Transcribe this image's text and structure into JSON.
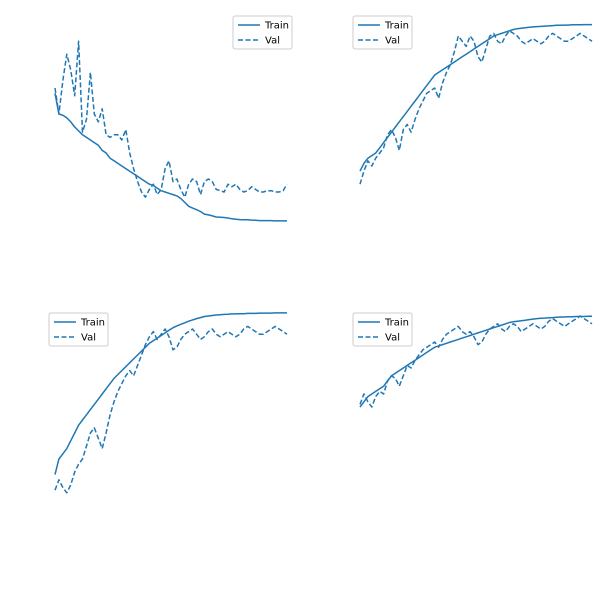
{
  "colors": {
    "line": "#1f77b4",
    "background": "#ffffff",
    "legend_border": "#cccccc"
  },
  "chart_data": [
    {
      "type": "line",
      "grid": false,
      "axes_visible": false,
      "legend_position": "upper-right",
      "x": [
        1,
        2,
        3,
        4,
        5,
        6,
        7,
        8,
        9,
        10,
        11,
        12,
        13,
        14,
        15,
        16,
        17,
        18,
        19,
        20,
        21,
        22,
        23,
        24,
        25,
        26,
        27,
        28,
        29,
        30,
        31,
        32,
        33,
        34,
        35,
        36,
        37,
        38,
        39,
        40,
        41,
        42,
        43,
        44,
        45,
        46,
        47,
        48,
        49,
        50,
        51,
        52,
        53,
        54,
        55,
        56,
        57,
        58,
        59,
        60
      ],
      "ylim": [
        0,
        1
      ],
      "series": [
        {
          "name": "Train",
          "style": "solid",
          "values": [
            0.68,
            0.6,
            0.595,
            0.585,
            0.57,
            0.55,
            0.535,
            0.52,
            0.51,
            0.5,
            0.49,
            0.48,
            0.46,
            0.45,
            0.43,
            0.42,
            0.41,
            0.4,
            0.39,
            0.38,
            0.37,
            0.36,
            0.35,
            0.34,
            0.33,
            0.325,
            0.315,
            0.305,
            0.3,
            0.295,
            0.29,
            0.285,
            0.275,
            0.26,
            0.245,
            0.238,
            0.232,
            0.225,
            0.215,
            0.212,
            0.208,
            0.204,
            0.203,
            0.202,
            0.2,
            0.197,
            0.195,
            0.194,
            0.193,
            0.193,
            0.192,
            0.191,
            0.19,
            0.19,
            0.19,
            0.19,
            0.189,
            0.189,
            0.189,
            0.189
          ]
        },
        {
          "name": "Val",
          "style": "dashed",
          "values": [
            0.7,
            0.6,
            0.73,
            0.83,
            0.77,
            0.67,
            0.88,
            0.53,
            0.58,
            0.76,
            0.6,
            0.57,
            0.62,
            0.52,
            0.51,
            0.52,
            0.52,
            0.5,
            0.54,
            0.45,
            0.39,
            0.34,
            0.3,
            0.28,
            0.31,
            0.33,
            0.29,
            0.31,
            0.39,
            0.42,
            0.34,
            0.35,
            0.31,
            0.28,
            0.33,
            0.35,
            0.34,
            0.29,
            0.34,
            0.35,
            0.34,
            0.31,
            0.305,
            0.3,
            0.33,
            0.32,
            0.33,
            0.31,
            0.3,
            0.305,
            0.32,
            0.31,
            0.3,
            0.3,
            0.305,
            0.305,
            0.3,
            0.3,
            0.305,
            0.33
          ]
        }
      ]
    },
    {
      "type": "line",
      "grid": false,
      "axes_visible": false,
      "legend_position": "upper-left",
      "x": [
        1,
        2,
        3,
        4,
        5,
        6,
        7,
        8,
        9,
        10,
        11,
        12,
        13,
        14,
        15,
        16,
        17,
        18,
        19,
        20,
        21,
        22,
        23,
        24,
        25,
        26,
        27,
        28,
        29,
        30,
        31,
        32,
        33,
        34,
        35,
        36,
        37,
        38,
        39,
        40,
        41,
        42,
        43,
        44,
        45,
        46,
        47,
        48,
        49,
        50,
        51,
        52,
        53,
        54,
        55,
        56,
        57,
        58,
        59,
        60
      ],
      "ylim": [
        0,
        1
      ],
      "series": [
        {
          "name": "Train",
          "style": "solid",
          "values": [
            0.38,
            0.41,
            0.43,
            0.44,
            0.45,
            0.47,
            0.49,
            0.51,
            0.53,
            0.55,
            0.57,
            0.59,
            0.61,
            0.63,
            0.65,
            0.67,
            0.69,
            0.71,
            0.73,
            0.75,
            0.76,
            0.77,
            0.78,
            0.79,
            0.8,
            0.81,
            0.82,
            0.83,
            0.84,
            0.85,
            0.86,
            0.87,
            0.88,
            0.89,
            0.9,
            0.905,
            0.91,
            0.915,
            0.92,
            0.925,
            0.928,
            0.93,
            0.932,
            0.934,
            0.935,
            0.936,
            0.937,
            0.938,
            0.939,
            0.94,
            0.941,
            0.941,
            0.942,
            0.942,
            0.943,
            0.943,
            0.943,
            0.944,
            0.944,
            0.944
          ]
        },
        {
          "name": "Val",
          "style": "dashed",
          "values": [
            0.33,
            0.38,
            0.42,
            0.4,
            0.43,
            0.45,
            0.47,
            0.52,
            0.54,
            0.51,
            0.46,
            0.54,
            0.56,
            0.53,
            0.58,
            0.62,
            0.65,
            0.68,
            0.69,
            0.7,
            0.66,
            0.72,
            0.76,
            0.79,
            0.84,
            0.9,
            0.88,
            0.86,
            0.9,
            0.88,
            0.82,
            0.8,
            0.85,
            0.9,
            0.91,
            0.88,
            0.87,
            0.9,
            0.92,
            0.91,
            0.9,
            0.88,
            0.87,
            0.88,
            0.89,
            0.88,
            0.87,
            0.88,
            0.9,
            0.91,
            0.9,
            0.89,
            0.88,
            0.88,
            0.89,
            0.9,
            0.91,
            0.9,
            0.89,
            0.88
          ]
        }
      ]
    },
    {
      "type": "line",
      "grid": false,
      "axes_visible": false,
      "legend_position": "upper-left",
      "x": [
        1,
        2,
        3,
        4,
        5,
        6,
        7,
        8,
        9,
        10,
        11,
        12,
        13,
        14,
        15,
        16,
        17,
        18,
        19,
        20,
        21,
        22,
        23,
        24,
        25,
        26,
        27,
        28,
        29,
        30,
        31,
        32,
        33,
        34,
        35,
        36,
        37,
        38,
        39,
        40,
        41,
        42,
        43,
        44,
        45,
        46,
        47,
        48,
        49,
        50,
        51,
        52,
        53,
        54,
        55,
        56,
        57,
        58,
        59,
        60
      ],
      "ylim": [
        0,
        1
      ],
      "series": [
        {
          "name": "Train",
          "style": "solid",
          "values": [
            0.34,
            0.4,
            0.42,
            0.44,
            0.47,
            0.5,
            0.53,
            0.55,
            0.57,
            0.59,
            0.61,
            0.63,
            0.65,
            0.67,
            0.69,
            0.71,
            0.725,
            0.74,
            0.755,
            0.77,
            0.785,
            0.8,
            0.815,
            0.83,
            0.845,
            0.855,
            0.865,
            0.875,
            0.885,
            0.895,
            0.905,
            0.912,
            0.918,
            0.924,
            0.93,
            0.935,
            0.94,
            0.944,
            0.948,
            0.95,
            0.952,
            0.954,
            0.955,
            0.956,
            0.957,
            0.958,
            0.958,
            0.959,
            0.959,
            0.96,
            0.96,
            0.96,
            0.961,
            0.961,
            0.961,
            0.961,
            0.962,
            0.962,
            0.962,
            0.962
          ]
        },
        {
          "name": "Val",
          "style": "dashed",
          "values": [
            0.28,
            0.32,
            0.29,
            0.27,
            0.3,
            0.35,
            0.38,
            0.4,
            0.45,
            0.5,
            0.52,
            0.48,
            0.44,
            0.5,
            0.57,
            0.62,
            0.66,
            0.69,
            0.72,
            0.74,
            0.72,
            0.76,
            0.8,
            0.84,
            0.87,
            0.89,
            0.86,
            0.88,
            0.9,
            0.87,
            0.82,
            0.83,
            0.86,
            0.88,
            0.89,
            0.9,
            0.88,
            0.86,
            0.87,
            0.89,
            0.9,
            0.88,
            0.87,
            0.88,
            0.89,
            0.88,
            0.87,
            0.88,
            0.9,
            0.91,
            0.9,
            0.89,
            0.88,
            0.88,
            0.89,
            0.9,
            0.91,
            0.9,
            0.89,
            0.88
          ]
        }
      ]
    },
    {
      "type": "line",
      "grid": false,
      "axes_visible": false,
      "legend_position": "upper-left",
      "x": [
        1,
        2,
        3,
        4,
        5,
        6,
        7,
        8,
        9,
        10,
        11,
        12,
        13,
        14,
        15,
        16,
        17,
        18,
        19,
        20,
        21,
        22,
        23,
        24,
        25,
        26,
        27,
        28,
        29,
        30,
        31,
        32,
        33,
        34,
        35,
        36,
        37,
        38,
        39,
        40,
        41,
        42,
        43,
        44,
        45,
        46,
        47,
        48,
        49,
        50,
        51,
        52,
        53,
        54,
        55,
        56,
        57,
        58,
        59,
        60
      ],
      "ylim": [
        0,
        1
      ],
      "series": [
        {
          "name": "Train",
          "style": "solid",
          "values": [
            0.6,
            0.62,
            0.64,
            0.65,
            0.66,
            0.67,
            0.68,
            0.7,
            0.72,
            0.73,
            0.74,
            0.75,
            0.76,
            0.77,
            0.78,
            0.79,
            0.8,
            0.81,
            0.82,
            0.83,
            0.835,
            0.84,
            0.845,
            0.85,
            0.855,
            0.86,
            0.865,
            0.87,
            0.875,
            0.88,
            0.885,
            0.89,
            0.895,
            0.9,
            0.905,
            0.91,
            0.915,
            0.92,
            0.925,
            0.928,
            0.93,
            0.932,
            0.934,
            0.936,
            0.938,
            0.94,
            0.941,
            0.942,
            0.943,
            0.944,
            0.945,
            0.946,
            0.946,
            0.947,
            0.947,
            0.948,
            0.948,
            0.948,
            0.949,
            0.949
          ]
        },
        {
          "name": "Val",
          "style": "dashed",
          "values": [
            0.61,
            0.65,
            0.62,
            0.6,
            0.64,
            0.66,
            0.65,
            0.7,
            0.72,
            0.71,
            0.68,
            0.72,
            0.76,
            0.75,
            0.78,
            0.8,
            0.82,
            0.83,
            0.84,
            0.85,
            0.83,
            0.86,
            0.88,
            0.89,
            0.9,
            0.91,
            0.89,
            0.88,
            0.89,
            0.87,
            0.84,
            0.85,
            0.88,
            0.9,
            0.91,
            0.92,
            0.9,
            0.89,
            0.91,
            0.92,
            0.91,
            0.89,
            0.9,
            0.91,
            0.92,
            0.91,
            0.9,
            0.91,
            0.93,
            0.94,
            0.93,
            0.92,
            0.91,
            0.92,
            0.93,
            0.94,
            0.95,
            0.94,
            0.93,
            0.92
          ]
        }
      ]
    }
  ]
}
